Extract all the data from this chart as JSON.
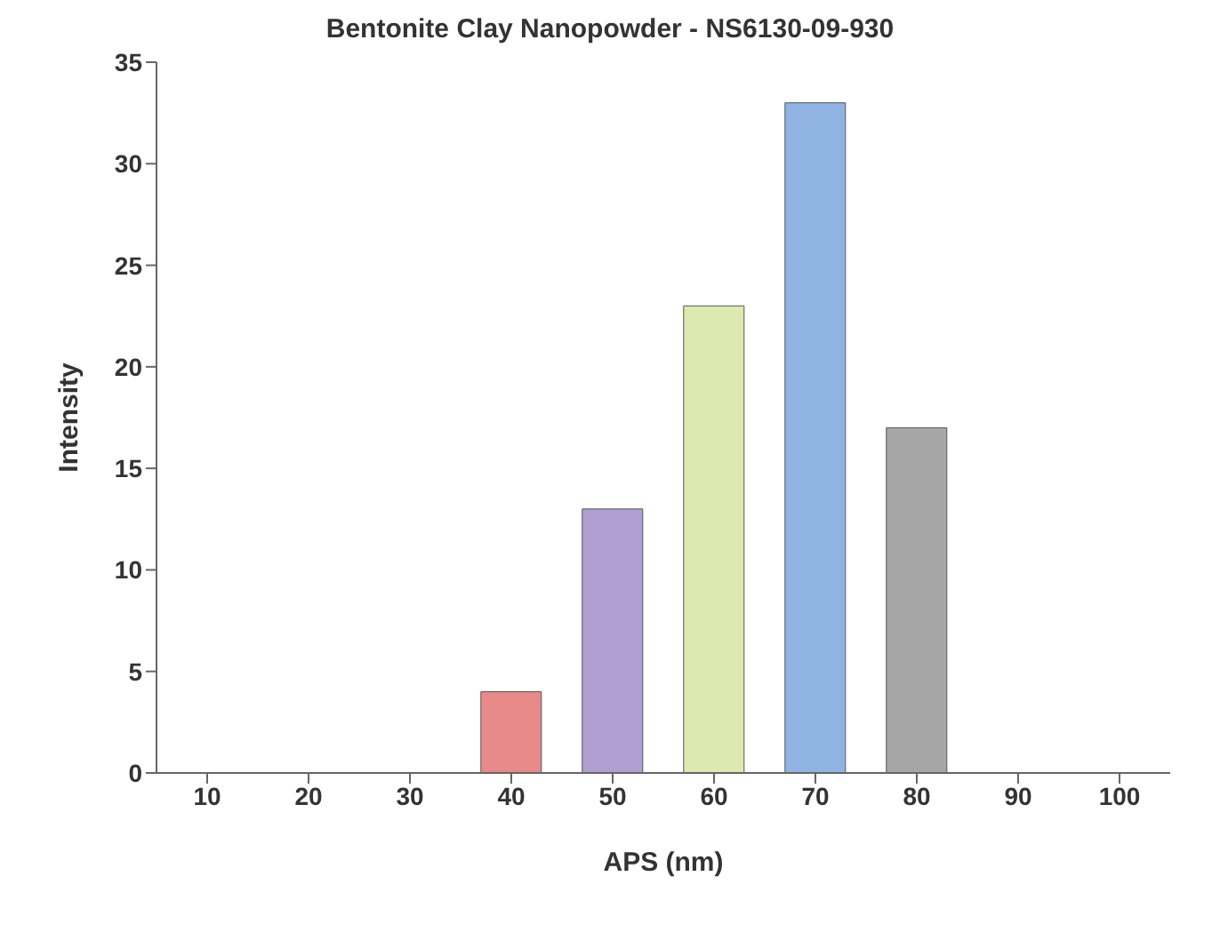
{
  "chart_data": {
    "type": "bar",
    "title": "Bentonite Clay Nanopowder - NS6130-09-930",
    "xlabel": "APS (nm)",
    "ylabel": "Intensity",
    "categories": [
      "10",
      "20",
      "30",
      "40",
      "50",
      "60",
      "70",
      "80",
      "90",
      "100"
    ],
    "values": [
      0,
      0,
      0,
      4,
      13,
      23,
      33,
      17,
      0,
      0
    ],
    "colors": [
      "#3f5f8a",
      "#2e8b57",
      "#8b4513",
      "#e88a88",
      "#b09fd0",
      "#dde9b0",
      "#8fb4e3",
      "#a6a6a6",
      "#5f8f90",
      "#a08060"
    ],
    "ylim": [
      0,
      35
    ],
    "yticks": [
      0,
      5,
      10,
      15,
      20,
      25,
      30,
      35
    ],
    "grid": false,
    "legend": false
  }
}
